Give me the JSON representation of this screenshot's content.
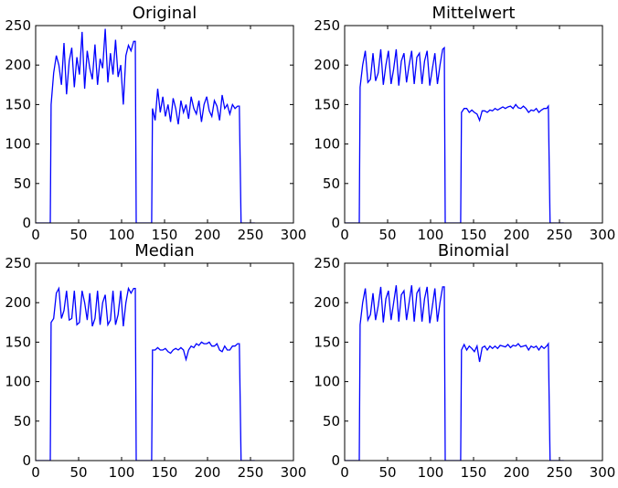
{
  "chart_data": [
    {
      "type": "line",
      "title": "Original",
      "color": "#0000ff",
      "x": [
        0,
        17,
        18,
        21,
        24,
        27,
        30,
        33,
        36,
        39,
        42,
        45,
        48,
        51,
        54,
        57,
        60,
        63,
        66,
        69,
        72,
        75,
        78,
        81,
        84,
        87,
        90,
        93,
        96,
        99,
        102,
        105,
        108,
        111,
        114,
        116,
        117,
        135,
        136,
        139,
        142,
        145,
        148,
        151,
        154,
        157,
        160,
        163,
        166,
        169,
        172,
        175,
        178,
        181,
        184,
        187,
        190,
        193,
        196,
        199,
        202,
        205,
        208,
        211,
        214,
        217,
        220,
        223,
        226,
        229,
        232,
        235,
        237,
        239,
        255
      ],
      "values": [
        0,
        0,
        150,
        190,
        212,
        200,
        175,
        228,
        163,
        205,
        222,
        172,
        210,
        188,
        242,
        170,
        218,
        196,
        182,
        226,
        175,
        208,
        196,
        246,
        178,
        215,
        188,
        232,
        185,
        200,
        150,
        212,
        225,
        218,
        230,
        230,
        0,
        0,
        145,
        130,
        170,
        140,
        160,
        135,
        150,
        128,
        158,
        145,
        125,
        155,
        140,
        150,
        132,
        160,
        145,
        138,
        155,
        128,
        150,
        160,
        142,
        135,
        155,
        148,
        130,
        162,
        145,
        150,
        138,
        150,
        145,
        148,
        148,
        0,
        0
      ],
      "xlim": [
        0,
        300
      ],
      "ylim": [
        0,
        250
      ],
      "xticks": [
        0,
        50,
        100,
        150,
        200,
        250,
        300
      ],
      "yticks": [
        0,
        50,
        100,
        150,
        200,
        250
      ]
    },
    {
      "type": "line",
      "title": "Mittelwert",
      "color": "#0000ff",
      "x": [
        0,
        17,
        18,
        21,
        24,
        27,
        30,
        33,
        36,
        39,
        42,
        45,
        48,
        51,
        54,
        57,
        60,
        63,
        66,
        69,
        72,
        75,
        78,
        81,
        84,
        87,
        90,
        93,
        96,
        99,
        102,
        105,
        108,
        111,
        114,
        116,
        117,
        135,
        136,
        139,
        142,
        145,
        148,
        151,
        154,
        157,
        160,
        163,
        166,
        169,
        172,
        175,
        178,
        181,
        184,
        187,
        190,
        193,
        196,
        199,
        202,
        205,
        208,
        211,
        214,
        217,
        220,
        223,
        226,
        229,
        232,
        235,
        237,
        239,
        255
      ],
      "values": [
        0,
        0,
        172,
        200,
        218,
        178,
        182,
        215,
        180,
        190,
        220,
        175,
        200,
        218,
        176,
        195,
        220,
        174,
        205,
        215,
        178,
        200,
        218,
        176,
        210,
        215,
        176,
        205,
        218,
        174,
        195,
        215,
        176,
        200,
        220,
        222,
        0,
        0,
        140,
        145,
        145,
        140,
        143,
        140,
        138,
        130,
        142,
        142,
        140,
        143,
        142,
        145,
        143,
        145,
        147,
        145,
        147,
        148,
        145,
        150,
        146,
        145,
        148,
        145,
        140,
        143,
        142,
        145,
        140,
        143,
        145,
        145,
        148,
        0,
        0
      ],
      "xlim": [
        0,
        300
      ],
      "ylim": [
        0,
        250
      ],
      "xticks": [
        0,
        50,
        100,
        150,
        200,
        250,
        300
      ],
      "yticks": [
        0,
        50,
        100,
        150,
        200,
        250
      ]
    },
    {
      "type": "line",
      "title": "Median",
      "color": "#0000ff",
      "x": [
        0,
        17,
        18,
        21,
        24,
        27,
        30,
        33,
        36,
        39,
        42,
        45,
        48,
        51,
        54,
        57,
        60,
        63,
        66,
        69,
        72,
        75,
        78,
        81,
        84,
        87,
        90,
        93,
        96,
        99,
        102,
        105,
        108,
        111,
        114,
        116,
        117,
        135,
        136,
        139,
        142,
        145,
        148,
        151,
        154,
        157,
        160,
        163,
        166,
        169,
        172,
        175,
        178,
        181,
        184,
        187,
        190,
        193,
        196,
        199,
        202,
        205,
        208,
        211,
        214,
        217,
        220,
        223,
        226,
        229,
        232,
        235,
        237,
        239,
        255
      ],
      "values": [
        0,
        0,
        175,
        180,
        212,
        218,
        180,
        190,
        215,
        178,
        180,
        215,
        172,
        175,
        215,
        200,
        178,
        212,
        170,
        180,
        215,
        172,
        200,
        210,
        172,
        178,
        215,
        172,
        185,
        215,
        170,
        200,
        218,
        212,
        218,
        218,
        0,
        0,
        140,
        140,
        143,
        140,
        140,
        142,
        138,
        136,
        140,
        142,
        140,
        143,
        140,
        128,
        140,
        145,
        143,
        148,
        146,
        150,
        148,
        148,
        150,
        145,
        145,
        148,
        140,
        138,
        145,
        140,
        140,
        145,
        145,
        148,
        148,
        0,
        0
      ],
      "xlim": [
        0,
        300
      ],
      "ylim": [
        0,
        250
      ],
      "xticks": [
        0,
        50,
        100,
        150,
        200,
        250,
        300
      ],
      "yticks": [
        0,
        50,
        100,
        150,
        200,
        250
      ]
    },
    {
      "type": "line",
      "title": "Binomial",
      "color": "#0000ff",
      "x": [
        0,
        17,
        18,
        21,
        24,
        27,
        30,
        33,
        36,
        39,
        42,
        45,
        48,
        51,
        54,
        57,
        60,
        63,
        66,
        69,
        72,
        75,
        78,
        81,
        84,
        87,
        90,
        93,
        96,
        99,
        102,
        105,
        108,
        111,
        114,
        116,
        117,
        135,
        136,
        139,
        142,
        145,
        148,
        151,
        154,
        157,
        160,
        163,
        166,
        169,
        172,
        175,
        178,
        181,
        184,
        187,
        190,
        193,
        196,
        199,
        202,
        205,
        208,
        211,
        214,
        217,
        220,
        223,
        226,
        229,
        232,
        235,
        237,
        239,
        255
      ],
      "values": [
        0,
        0,
        172,
        200,
        218,
        178,
        185,
        212,
        178,
        196,
        220,
        175,
        205,
        215,
        178,
        200,
        222,
        176,
        210,
        215,
        178,
        200,
        222,
        176,
        212,
        218,
        176,
        205,
        220,
        174,
        195,
        218,
        176,
        200,
        220,
        220,
        0,
        0,
        140,
        147,
        140,
        145,
        142,
        138,
        145,
        125,
        143,
        145,
        140,
        145,
        142,
        145,
        142,
        146,
        145,
        144,
        147,
        143,
        146,
        145,
        148,
        144,
        145,
        146,
        140,
        145,
        143,
        145,
        140,
        145,
        142,
        145,
        148,
        0,
        0
      ],
      "xlim": [
        0,
        300
      ],
      "ylim": [
        0,
        250
      ],
      "xticks": [
        0,
        50,
        100,
        150,
        200,
        250,
        300
      ],
      "yticks": [
        0,
        50,
        100,
        150,
        200,
        250
      ]
    }
  ]
}
